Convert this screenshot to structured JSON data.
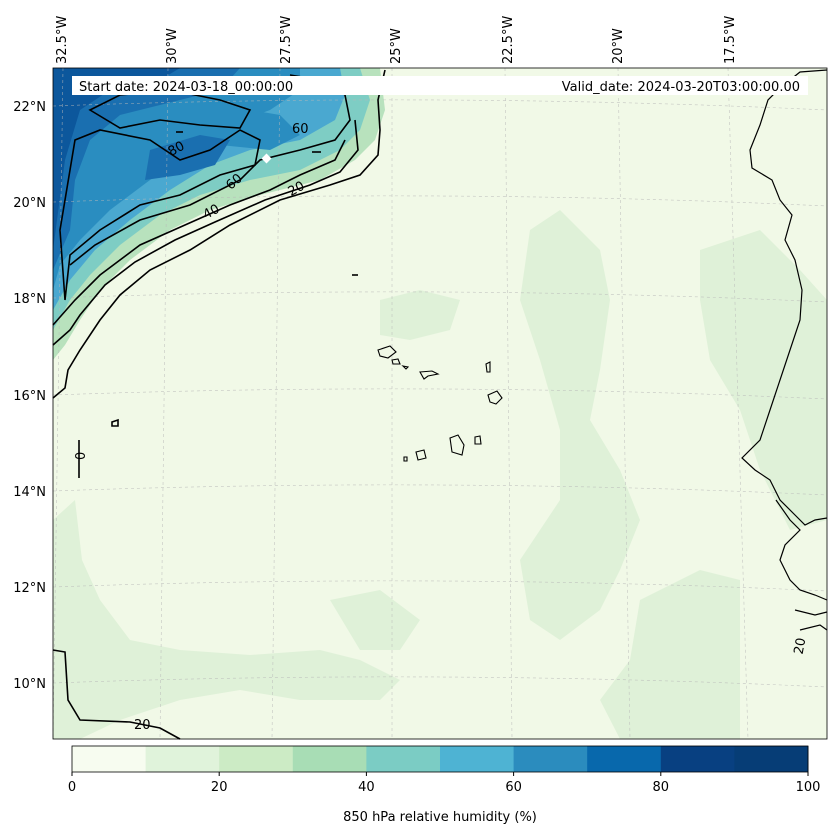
{
  "header": {
    "start_date": "Start date: 2024-03-18_00:00:00",
    "valid_date": "Valid_date: 2024-03-20T03:00:00.00"
  },
  "axes": {
    "lon_labels": [
      "32.5°W",
      "30°W",
      "27.5°W",
      "25°W",
      "22.5°W",
      "20°W",
      "17.5°W"
    ],
    "lat_labels": [
      "22°N",
      "20°N",
      "18°N",
      "16°N",
      "14°N",
      "12°N",
      "10°N"
    ]
  },
  "contour_labels": [
    "60",
    "80",
    "60",
    "20",
    "40",
    "0",
    "20",
    "20"
  ],
  "colorbar": {
    "label": "850 hPa relative humidity (%)",
    "ticks": [
      "0",
      "20",
      "40",
      "60",
      "80",
      "100"
    ],
    "colors": [
      "#f7fcf0",
      "#e0f3db",
      "#ccebc5",
      "#a8ddb5",
      "#7bccc4",
      "#4eb3d3",
      "#2b8cbe",
      "#0868ac",
      "#084081",
      "#063d76"
    ],
    "range": [
      0,
      100
    ]
  },
  "palette": {
    "land": "#f0f9e8",
    "ocean_low": "#f2fae9",
    "ocean_20": "#e2f3dc",
    "ocean_40": "#b8e3bd",
    "ocean_60": "#7fcdc4",
    "ocean_70": "#4aa8d0",
    "ocean_80": "#1d78b4",
    "ocean_90": "#0b5a9e"
  }
}
